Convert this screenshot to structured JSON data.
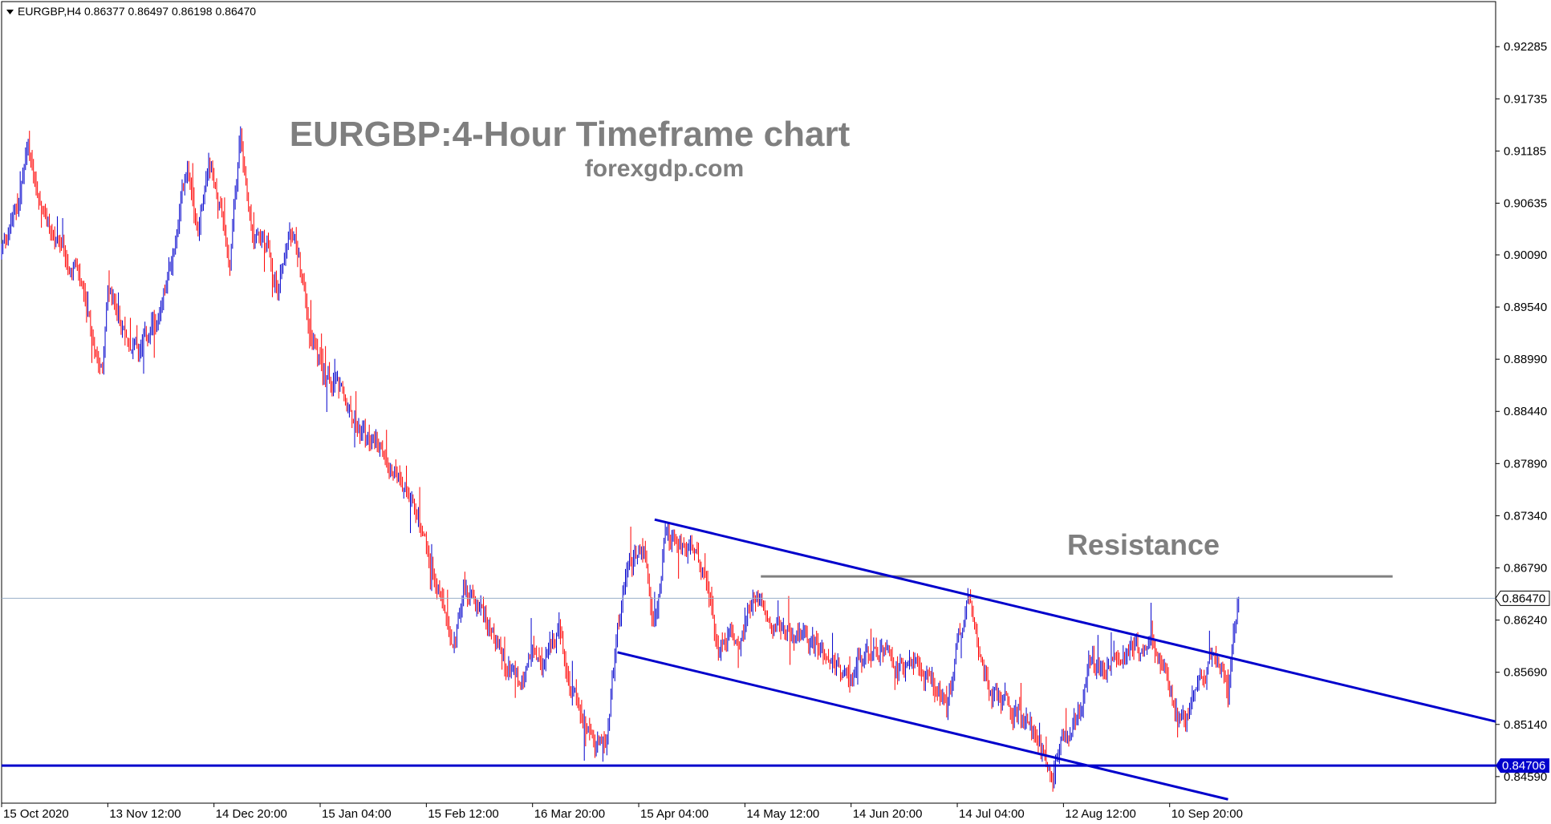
{
  "chart_data": {
    "type": "candlestick",
    "symbol_info": "EURGBP,H4  0.86377 0.86497 0.86198 0.86470",
    "title": "EURGBP:4-Hour Timeframe chart",
    "subtitle": "forexgdp.com",
    "ylim": [
      0.8431,
      0.9276
    ],
    "y_ticks": [
      "0.92285",
      "0.91735",
      "0.91185",
      "0.90635",
      "0.90090",
      "0.89540",
      "0.88990",
      "0.88440",
      "0.87890",
      "0.87340",
      "0.86790",
      "0.86240",
      "0.85690",
      "0.85140",
      "0.84590"
    ],
    "x_ticks": [
      {
        "label": "15 Oct 2020",
        "t": 0
      },
      {
        "label": "13 Nov 12:00",
        "t": 1
      },
      {
        "label": "14 Dec 20:00",
        "t": 2
      },
      {
        "label": "15 Jan 04:00",
        "t": 3
      },
      {
        "label": "15 Feb 12:00",
        "t": 4
      },
      {
        "label": "16 Mar 20:00",
        "t": 5
      },
      {
        "label": "15 Apr 04:00",
        "t": 6
      },
      {
        "label": "14 May 12:00",
        "t": 7
      },
      {
        "label": "14 Jun 20:00",
        "t": 8
      },
      {
        "label": "14 Jul 04:00",
        "t": 9
      },
      {
        "label": "12 Aug 12:00",
        "t": 10
      },
      {
        "label": "10 Sep 20:00",
        "t": 11
      }
    ],
    "x_range": [
      0,
      14.07
    ],
    "series": [
      {
        "path": [
          [
            0.0,
            0.9015
          ],
          [
            0.15,
            0.906
          ],
          [
            0.25,
            0.912
          ],
          [
            0.4,
            0.905
          ],
          [
            0.55,
            0.901
          ],
          [
            0.7,
            0.8995
          ],
          [
            0.85,
            0.892
          ],
          [
            0.95,
            0.8895
          ],
          [
            1.0,
            0.897
          ],
          [
            1.15,
            0.893
          ],
          [
            1.3,
            0.8905
          ],
          [
            1.5,
            0.895
          ],
          [
            1.65,
            0.903
          ],
          [
            1.75,
            0.911
          ],
          [
            1.85,
            0.9035
          ],
          [
            1.95,
            0.9115
          ],
          [
            2.05,
            0.906
          ],
          [
            2.15,
            0.9
          ],
          [
            2.25,
            0.913
          ],
          [
            2.35,
            0.904
          ],
          [
            2.5,
            0.902
          ],
          [
            2.6,
            0.897
          ],
          [
            2.7,
            0.903
          ],
          [
            2.8,
            0.901
          ],
          [
            2.9,
            0.893
          ],
          [
            3.05,
            0.888
          ],
          [
            3.2,
            0.886
          ],
          [
            3.4,
            0.882
          ],
          [
            3.6,
            0.8795
          ],
          [
            3.8,
            0.877
          ],
          [
            4.0,
            0.87
          ],
          [
            4.15,
            0.864
          ],
          [
            4.25,
            0.859
          ],
          [
            4.35,
            0.866
          ],
          [
            4.45,
            0.864
          ],
          [
            4.6,
            0.862
          ],
          [
            4.75,
            0.857
          ],
          [
            4.9,
            0.856
          ],
          [
            5.0,
            0.859
          ],
          [
            5.1,
            0.857
          ],
          [
            5.25,
            0.862
          ],
          [
            5.35,
            0.855
          ],
          [
            5.5,
            0.852
          ],
          [
            5.6,
            0.849
          ],
          [
            5.7,
            0.85
          ],
          [
            5.8,
            0.861
          ],
          [
            5.9,
            0.868
          ],
          [
            6.05,
            0.87
          ],
          [
            6.15,
            0.862
          ],
          [
            6.25,
            0.8705
          ],
          [
            6.35,
            0.8715
          ],
          [
            6.45,
            0.869
          ],
          [
            6.55,
            0.87
          ],
          [
            6.65,
            0.865
          ],
          [
            6.75,
            0.859
          ],
          [
            6.85,
            0.861
          ],
          [
            6.95,
            0.86
          ],
          [
            7.05,
            0.864
          ],
          [
            7.15,
            0.865
          ],
          [
            7.25,
            0.861
          ],
          [
            7.4,
            0.862
          ],
          [
            7.6,
            0.86
          ],
          [
            7.8,
            0.859
          ],
          [
            7.95,
            0.856
          ],
          [
            8.1,
            0.858
          ],
          [
            8.3,
            0.859
          ],
          [
            8.45,
            0.857
          ],
          [
            8.6,
            0.858
          ],
          [
            8.75,
            0.856
          ],
          [
            8.9,
            0.853
          ],
          [
            9.0,
            0.86
          ],
          [
            9.1,
            0.865
          ],
          [
            9.2,
            0.859
          ],
          [
            9.3,
            0.855
          ],
          [
            9.45,
            0.854
          ],
          [
            9.6,
            0.852
          ],
          [
            9.7,
            0.851
          ],
          [
            9.8,
            0.848
          ],
          [
            9.9,
            0.846
          ],
          [
            10.0,
            0.85
          ],
          [
            10.15,
            0.853
          ],
          [
            10.25,
            0.858
          ],
          [
            10.4,
            0.857
          ],
          [
            10.55,
            0.859
          ],
          [
            10.7,
            0.8595
          ],
          [
            10.85,
            0.86
          ],
          [
            10.95,
            0.858
          ],
          [
            11.05,
            0.853
          ],
          [
            11.15,
            0.852
          ],
          [
            11.3,
            0.856
          ],
          [
            11.4,
            0.858
          ],
          [
            11.5,
            0.857
          ],
          [
            11.55,
            0.854
          ],
          [
            11.6,
            0.862
          ],
          [
            11.65,
            0.8647
          ]
        ]
      }
    ],
    "current_price": "0.86470",
    "support_price": "0.84706",
    "support_level": 0.84706,
    "resistance_label": "Resistance",
    "resistance_level": 0.867,
    "resistance_range": [
      7.15,
      13.1
    ],
    "channel_upper": [
      [
        6.15,
        0.873
      ],
      [
        14.07,
        0.8517
      ]
    ],
    "channel_lower": [
      [
        5.8,
        0.859
      ],
      [
        11.55,
        0.8435
      ]
    ],
    "colors": {
      "bull": "#0000cc",
      "bear": "#ff0000",
      "channel": "#0000cc",
      "support": "#0000cc",
      "resistance": "#808080",
      "price_line": "#9ab0c8",
      "text_gray": "#7f7f7f"
    }
  }
}
